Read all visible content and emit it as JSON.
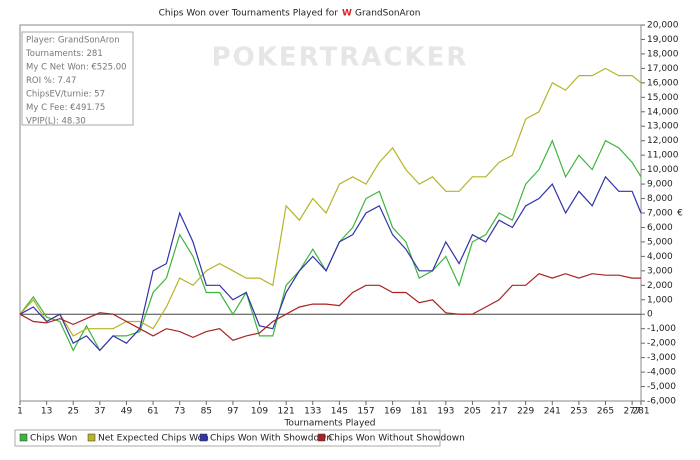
{
  "chart_data": {
    "type": "line",
    "title": "Chips Won over Tournaments Played for",
    "player": "GrandSonAron",
    "watermark": "POKERTRACKER",
    "info": [
      "Player: GrandSonAron",
      "Tournaments: 281",
      "My C Net Won: €525.00",
      "ROI %: 7.47",
      "ChipsEV/turnie: 57",
      "My C Fee: €491.75",
      "VPIP(L): 48.30"
    ],
    "x_label": "Tournaments Played",
    "y_label": "€",
    "x": [
      1,
      7,
      13,
      19,
      25,
      31,
      37,
      43,
      49,
      55,
      61,
      67,
      73,
      79,
      85,
      91,
      97,
      103,
      109,
      115,
      121,
      127,
      133,
      139,
      145,
      151,
      157,
      163,
      169,
      175,
      181,
      187,
      193,
      199,
      205,
      211,
      217,
      223,
      229,
      235,
      241,
      247,
      253,
      259,
      265,
      271,
      277,
      281
    ],
    "series": [
      {
        "name": "Chips Won",
        "color": "#3db53d",
        "values": [
          0,
          1200,
          -200,
          -500,
          -2500,
          -800,
          -2500,
          -1500,
          -1500,
          -1200,
          1500,
          2500,
          5500,
          4000,
          1500,
          1500,
          0,
          1500,
          -1500,
          -1500,
          2000,
          3000,
          4500,
          3000,
          5000,
          6000,
          8000,
          8500,
          6000,
          5000,
          2500,
          3000,
          4000,
          2000,
          5000,
          5500,
          7000,
          6500,
          9000,
          10000,
          12000,
          9500,
          11000,
          10000,
          12000,
          11500,
          10500,
          9500
        ]
      },
      {
        "name": "Net Expected Chips Won",
        "color": "#b5b52a",
        "values": [
          0,
          1000,
          -500,
          0,
          -1500,
          -1000,
          -1000,
          -1000,
          -500,
          -500,
          -1000,
          500,
          2500,
          2000,
          3000,
          3500,
          3000,
          2500,
          2500,
          2000,
          7500,
          6500,
          8000,
          7000,
          9000,
          9500,
          9000,
          10500,
          11500,
          10000,
          9000,
          9500,
          8500,
          8500,
          9500,
          9500,
          10500,
          11000,
          13500,
          14000,
          16000,
          15500,
          16500,
          16500,
          17000,
          16500,
          16500,
          16000
        ]
      },
      {
        "name": "Chips Won With Showdown",
        "color": "#3333aa",
        "values": [
          0,
          500,
          -500,
          0,
          -2000,
          -1500,
          -2500,
          -1500,
          -2000,
          -1000,
          3000,
          3500,
          7000,
          5000,
          2000,
          2000,
          1000,
          1500,
          -800,
          -1000,
          1500,
          3000,
          4000,
          3000,
          5000,
          5500,
          7000,
          7500,
          5500,
          4500,
          3000,
          3000,
          5000,
          3500,
          5500,
          5000,
          6500,
          6000,
          7500,
          8000,
          9000,
          7000,
          8500,
          7500,
          9500,
          8500,
          8500,
          7000
        ]
      },
      {
        "name": "Chips Won Without Showdown",
        "color": "#aa2222",
        "values": [
          0,
          -500,
          -600,
          -300,
          -700,
          -300,
          100,
          0,
          -500,
          -1000,
          -1500,
          -1000,
          -1200,
          -1600,
          -1200,
          -1000,
          -1800,
          -1500,
          -1300,
          -500,
          0,
          500,
          700,
          700,
          600,
          1500,
          2000,
          2000,
          1500,
          1500,
          800,
          1000,
          100,
          0,
          0,
          500,
          1000,
          2000,
          2000,
          2800,
          2500,
          2800,
          2500,
          2800,
          2700,
          2700,
          2500,
          2500
        ]
      }
    ],
    "xlim": [
      1,
      281
    ],
    "xticks": [
      1,
      13,
      25,
      37,
      49,
      61,
      73,
      85,
      97,
      109,
      121,
      133,
      145,
      157,
      169,
      181,
      193,
      205,
      217,
      229,
      241,
      253,
      265,
      277,
      281
    ],
    "ylim": [
      -6000,
      20000
    ],
    "yticks": [
      {
        "value": -6000,
        "label": "-6,000"
      },
      {
        "value": -5000,
        "label": "-5,000"
      },
      {
        "value": -4000,
        "label": "-4,000"
      },
      {
        "value": -3000,
        "label": "-3,000"
      },
      {
        "value": -2000,
        "label": "-2,000"
      },
      {
        "value": -1000,
        "label": "-1,000"
      },
      0,
      {
        "value": 1000,
        "label": "1,000"
      },
      {
        "value": 2000,
        "label": "2,000"
      },
      {
        "value": 3000,
        "label": "3,000"
      },
      {
        "value": 4000,
        "label": "4,000"
      },
      {
        "value": 5000,
        "label": "5,000"
      },
      {
        "value": 6000,
        "label": "6,000"
      },
      {
        "value": 7000,
        "label": "7,000"
      },
      {
        "value": 8000,
        "label": "8,000"
      },
      {
        "value": 9000,
        "label": "9,000"
      },
      {
        "value": 10000,
        "label": "10,000"
      },
      {
        "value": 11000,
        "label": "11,000"
      },
      {
        "value": 12000,
        "label": "12,000"
      },
      {
        "value": 13000,
        "label": "13,000"
      },
      {
        "value": 14000,
        "label": "14,000"
      },
      {
        "value": 15000,
        "label": "15,000"
      },
      {
        "value": 16000,
        "label": "16,000"
      },
      {
        "value": 17000,
        "label": "17,000"
      },
      {
        "value": 18000,
        "label": "18,000"
      },
      {
        "value": 19000,
        "label": "19,000"
      },
      {
        "value": 20000,
        "label": "20,000"
      }
    ],
    "zero_line": true,
    "legend": "bottom"
  }
}
